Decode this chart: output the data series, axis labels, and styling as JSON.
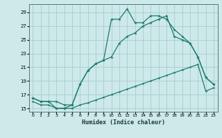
{
  "xlabel": "Humidex (Indice chaleur)",
  "xlim": [
    -0.5,
    23.5
  ],
  "ylim": [
    14.5,
    30.2
  ],
  "yticks": [
    15,
    17,
    19,
    21,
    23,
    25,
    27,
    29
  ],
  "xticks": [
    0,
    1,
    2,
    3,
    4,
    5,
    6,
    7,
    8,
    9,
    10,
    11,
    12,
    13,
    14,
    15,
    16,
    17,
    18,
    19,
    20,
    21,
    22,
    23
  ],
  "bg_color": "#cde9e9",
  "grid_color": "#aacccc",
  "line_color": "#1a7a6a",
  "line1_x": [
    0,
    1,
    2,
    3,
    4,
    5,
    6,
    7,
    8,
    9,
    10,
    11,
    12,
    13,
    14,
    15,
    16,
    17,
    18,
    19,
    20,
    21,
    22,
    23
  ],
  "line1_y": [
    16.5,
    16.0,
    16.0,
    15.0,
    15.0,
    15.5,
    18.5,
    20.5,
    21.5,
    22.0,
    28.0,
    28.0,
    29.5,
    27.5,
    27.5,
    28.5,
    28.5,
    28.0,
    26.5,
    25.5,
    24.5,
    22.5,
    19.5,
    18.5
  ],
  "line1_has_marker": [
    true,
    true,
    false,
    true,
    true,
    true,
    true,
    true,
    false,
    true,
    true,
    true,
    true,
    true,
    true,
    true,
    true,
    true,
    true,
    true,
    true,
    true,
    true,
    true
  ],
  "line2_x": [
    0,
    1,
    2,
    3,
    4,
    5,
    6,
    7,
    8,
    9,
    10,
    11,
    12,
    13,
    14,
    15,
    16,
    17,
    18,
    19,
    20,
    21,
    22,
    23
  ],
  "line2_y": [
    16.5,
    16.0,
    16.0,
    16.0,
    15.5,
    15.5,
    18.5,
    20.5,
    21.5,
    22.0,
    22.5,
    24.5,
    25.5,
    26.0,
    27.0,
    27.5,
    28.0,
    28.5,
    25.5,
    25.0,
    24.5,
    22.5,
    19.5,
    18.5
  ],
  "line2_has_marker": [
    false,
    false,
    false,
    false,
    false,
    true,
    false,
    false,
    false,
    false,
    false,
    false,
    false,
    false,
    false,
    false,
    false,
    true,
    false,
    false,
    true,
    false,
    true,
    true
  ],
  "line3_x": [
    0,
    1,
    2,
    3,
    4,
    5,
    6,
    7,
    8,
    9,
    10,
    11,
    12,
    13,
    14,
    15,
    16,
    17,
    18,
    19,
    20,
    21,
    22,
    23
  ],
  "line3_y": [
    16.0,
    15.5,
    15.5,
    15.0,
    15.0,
    15.0,
    15.5,
    15.8,
    16.2,
    16.6,
    17.0,
    17.4,
    17.8,
    18.2,
    18.6,
    19.0,
    19.4,
    19.8,
    20.2,
    20.6,
    21.0,
    21.4,
    17.5,
    18.0
  ]
}
